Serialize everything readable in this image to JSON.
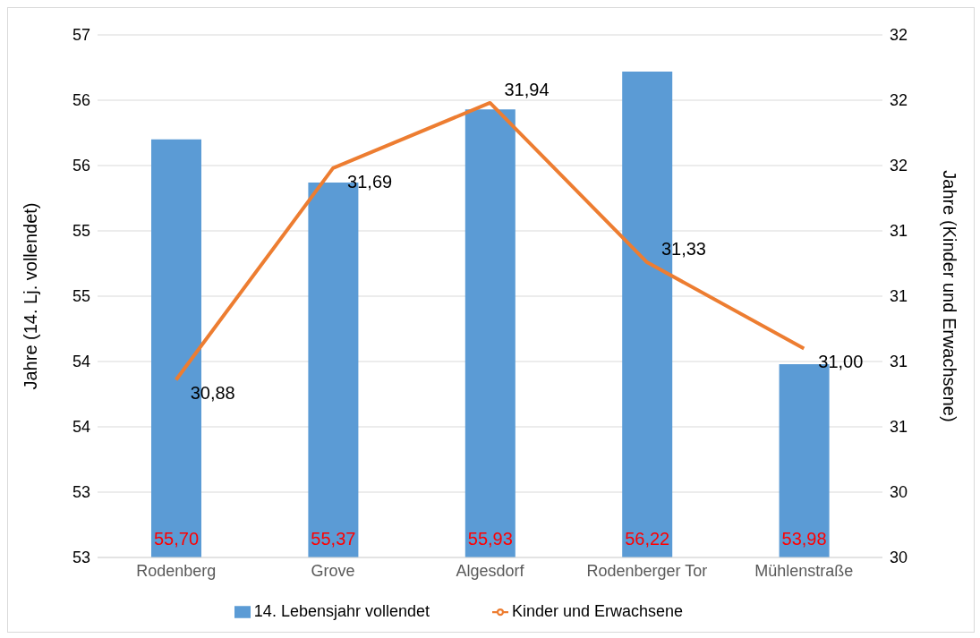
{
  "chart_data": {
    "type": "bar",
    "categories": [
      "Rodenberg",
      "Grove",
      "Algesdorf",
      "Rodenberger Tor",
      "Mühlenstraße"
    ],
    "ylabel": "Jahre (14. Lj. vollendet)",
    "y2label": "Jahre (Kinder und Erwachsene)",
    "ylim": [
      52.5,
      56.5
    ],
    "yticks": [
      {
        "value": 52.5,
        "label": "53"
      },
      {
        "value": 53,
        "label": "53"
      },
      {
        "value": 53.5,
        "label": "54"
      },
      {
        "value": 54,
        "label": "54"
      },
      {
        "value": 54.5,
        "label": "55"
      },
      {
        "value": 55,
        "label": "55"
      },
      {
        "value": 55.5,
        "label": "56"
      },
      {
        "value": 56,
        "label": "56"
      },
      {
        "value": 56.5,
        "label": "57"
      }
    ],
    "y2lim": [
      30.2,
      32.2
    ],
    "y2ticks": [
      {
        "value": 30.2,
        "label": "30"
      },
      {
        "value": 30.45,
        "label": "30"
      },
      {
        "value": 30.7,
        "label": "31"
      },
      {
        "value": 30.95,
        "label": "31"
      },
      {
        "value": 31.2,
        "label": "31"
      },
      {
        "value": 31.45,
        "label": "31"
      },
      {
        "value": 31.7,
        "label": "32"
      },
      {
        "value": 31.95,
        "label": "32"
      },
      {
        "value": 32.2,
        "label": "32"
      }
    ],
    "grid": "y",
    "legend": "bottom",
    "series": [
      {
        "name": "14. Lebensjahr vollendet",
        "color": "#5b9bd5",
        "values": [
          55.7,
          55.37,
          55.93,
          56.22,
          53.98
        ],
        "value_labels": [
          "55,70",
          "55,37",
          "55,93",
          "56,22",
          "53,98"
        ]
      },
      {
        "name": "Kinder und Erwachsene",
        "type": "line",
        "axis": "y2",
        "color": "#ed7d31",
        "values": [
          30.88,
          31.69,
          31.94,
          31.33,
          31.0
        ],
        "value_labels": [
          "30,88",
          "31,69",
          "31,94",
          "31,33",
          "31,00"
        ]
      }
    ]
  }
}
